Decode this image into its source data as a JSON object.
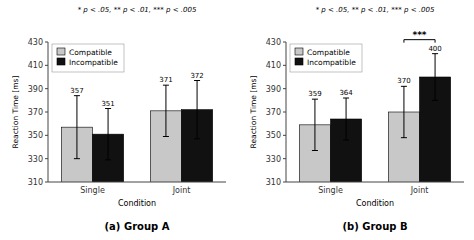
{
  "chart_data": [
    {
      "type": "bar",
      "title": "(a) Group A",
      "subtitle": "* p < .05, ** p < .01, *** p < .005",
      "x_label": "Condition",
      "y_label": "Reaction Time [ms]",
      "categories": [
        "Single",
        "Joint"
      ],
      "series": [
        {
          "name": "Compatible",
          "color": "#c8c8c8",
          "values": [
            357,
            371
          ],
          "errors": [
            27,
            22
          ]
        },
        {
          "name": "Incompatible",
          "color": "#111111",
          "values": [
            351,
            372
          ],
          "errors": [
            22,
            25
          ]
        }
      ],
      "ylim": [
        310,
        430
      ],
      "yticks": [
        310,
        330,
        350,
        370,
        390,
        410,
        430
      ],
      "grid": false,
      "legend": "upper left",
      "data_labels": true
    },
    {
      "type": "bar",
      "title": "(b) Group B",
      "subtitle": "* p < .05, ** p < .01, *** p < .005",
      "x_label": "Condition",
      "y_label": "Reaction Time [ms]",
      "categories": [
        "Single",
        "Joint"
      ],
      "series": [
        {
          "name": "Compatible",
          "color": "#c8c8c8",
          "values": [
            359,
            370
          ],
          "errors": [
            22,
            22
          ]
        },
        {
          "name": "Incompatible",
          "color": "#111111",
          "values": [
            364,
            400
          ],
          "errors": [
            18,
            20
          ]
        }
      ],
      "ylim": [
        310,
        430
      ],
      "yticks": [
        310,
        330,
        350,
        370,
        390,
        410,
        430
      ],
      "grid": false,
      "legend": "upper left",
      "data_labels": true,
      "annotations": [
        {
          "text": "***",
          "x": "Joint"
        }
      ]
    }
  ]
}
